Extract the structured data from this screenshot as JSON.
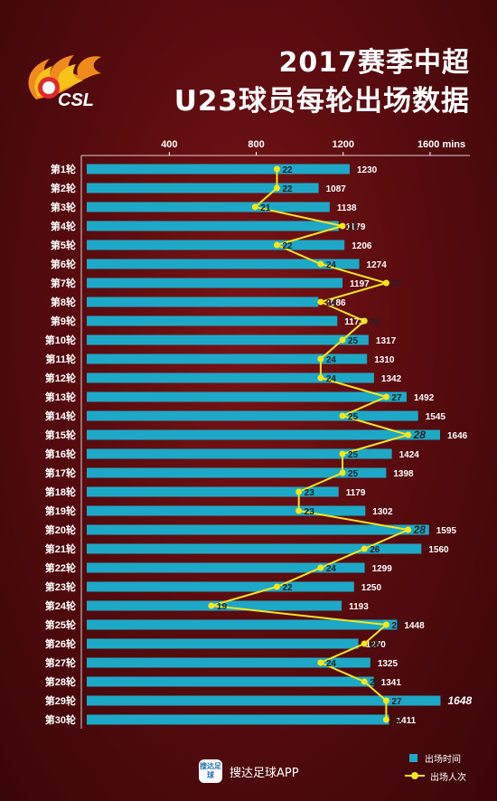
{
  "header": {
    "logo_text": "CSL",
    "title_line1": "2017赛季中超",
    "title_line2": "U23球员每轮出场数据"
  },
  "colors": {
    "bar": "#1ea8c7",
    "line": "#f5e61a",
    "background": "#6a0f12"
  },
  "legend": {
    "bar_label": "出场时间",
    "line_label": "出场人次"
  },
  "footer": {
    "icon_text": "搜达足球",
    "app_name": "搜达足球APP"
  },
  "chart_data": {
    "type": "bar",
    "orientation": "horizontal",
    "categories": [
      "第1轮",
      "第2轮",
      "第3轮",
      "第4轮",
      "第5轮",
      "第6轮",
      "第7轮",
      "第8轮",
      "第9轮",
      "第10轮",
      "第11轮",
      "第12轮",
      "第13轮",
      "第14轮",
      "第15轮",
      "第16轮",
      "第17轮",
      "第18轮",
      "第19轮",
      "第20轮",
      "第21轮",
      "第22轮",
      "第23轮",
      "第24轮",
      "第25轮",
      "第26轮",
      "第27轮",
      "第28轮",
      "第29轮",
      "第30轮"
    ],
    "series": [
      {
        "name": "出场时间",
        "type": "bar",
        "values": [
          1230,
          1087,
          1138,
          1179,
          1206,
          1274,
          1197,
          1086,
          1173,
          1317,
          1310,
          1342,
          1492,
          1545,
          1646,
          1424,
          1398,
          1179,
          1302,
          1595,
          1560,
          1299,
          1250,
          1193,
          1448,
          1270,
          1325,
          1341,
          1648,
          1411
        ]
      },
      {
        "name": "出场人次",
        "type": "line",
        "values": [
          22,
          22,
          21,
          25,
          22,
          24,
          27,
          24,
          26,
          25,
          24,
          24,
          27,
          25,
          28,
          25,
          25,
          23,
          23,
          28,
          26,
          24,
          22,
          19,
          27,
          26,
          24,
          26,
          27,
          27
        ]
      }
    ],
    "x_axis": {
      "ticks": [
        400,
        800,
        1200,
        1600
      ],
      "tick_labels": [
        "400",
        "800",
        "1200",
        "1600 mins"
      ],
      "range": [
        20,
        1700
      ]
    },
    "line_scale_range": [
      13.3,
      30
    ],
    "highlight_bar": 1648,
    "highlight_line": [
      28
    ],
    "grid": false,
    "legend_position": "bottom-right"
  }
}
